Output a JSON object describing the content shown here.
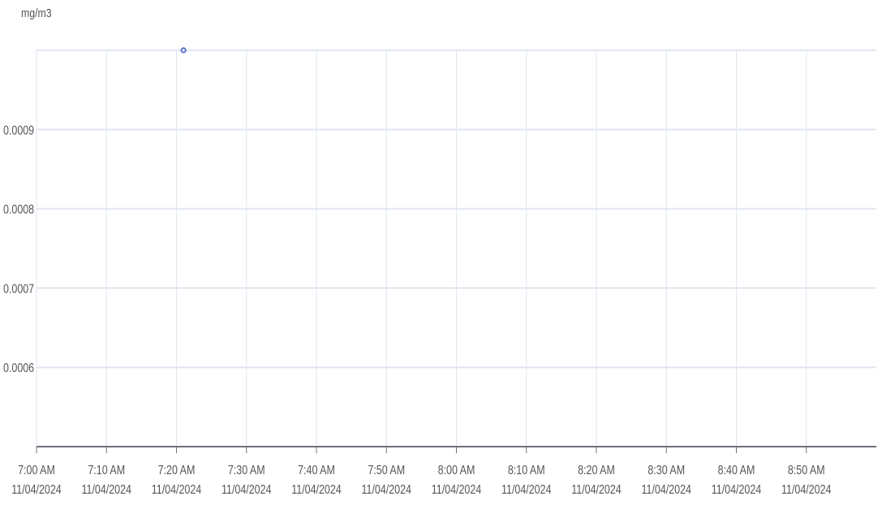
{
  "chart_data": {
    "type": "scatter",
    "ylabel": "mg/m3",
    "y_ticks": [
      "0.0009",
      "0.0008",
      "0.0007",
      "0.0006"
    ],
    "y_tick_values": [
      0.0009,
      0.0008,
      0.0007,
      0.0006
    ],
    "ylim": [
      0.0005,
      0.001
    ],
    "x_ticks": [
      {
        "time": "7:00 AM",
        "date": "11/04/2024"
      },
      {
        "time": "7:10 AM",
        "date": "11/04/2024"
      },
      {
        "time": "7:20 AM",
        "date": "11/04/2024"
      },
      {
        "time": "7:30 AM",
        "date": "11/04/2024"
      },
      {
        "time": "7:40 AM",
        "date": "11/04/2024"
      },
      {
        "time": "7:50 AM",
        "date": "11/04/2024"
      },
      {
        "time": "8:00 AM",
        "date": "11/04/2024"
      },
      {
        "time": "8:10 AM",
        "date": "11/04/2024"
      },
      {
        "time": "8:20 AM",
        "date": "11/04/2024"
      },
      {
        "time": "8:30 AM",
        "date": "11/04/2024"
      },
      {
        "time": "8:40 AM",
        "date": "11/04/2024"
      },
      {
        "time": "8:50 AM",
        "date": "11/04/2024"
      }
    ],
    "xlim": [
      "11/04/2024 7:00 AM",
      "11/04/2024 9:00 AM"
    ],
    "points": [
      {
        "x": "11/04/2024 7:21 AM",
        "y": 0.001
      }
    ],
    "grid": true,
    "legend": "none",
    "colors": {
      "point": "#5470c6",
      "grid": "#e0e6f1",
      "axis": "#6e7079"
    }
  }
}
